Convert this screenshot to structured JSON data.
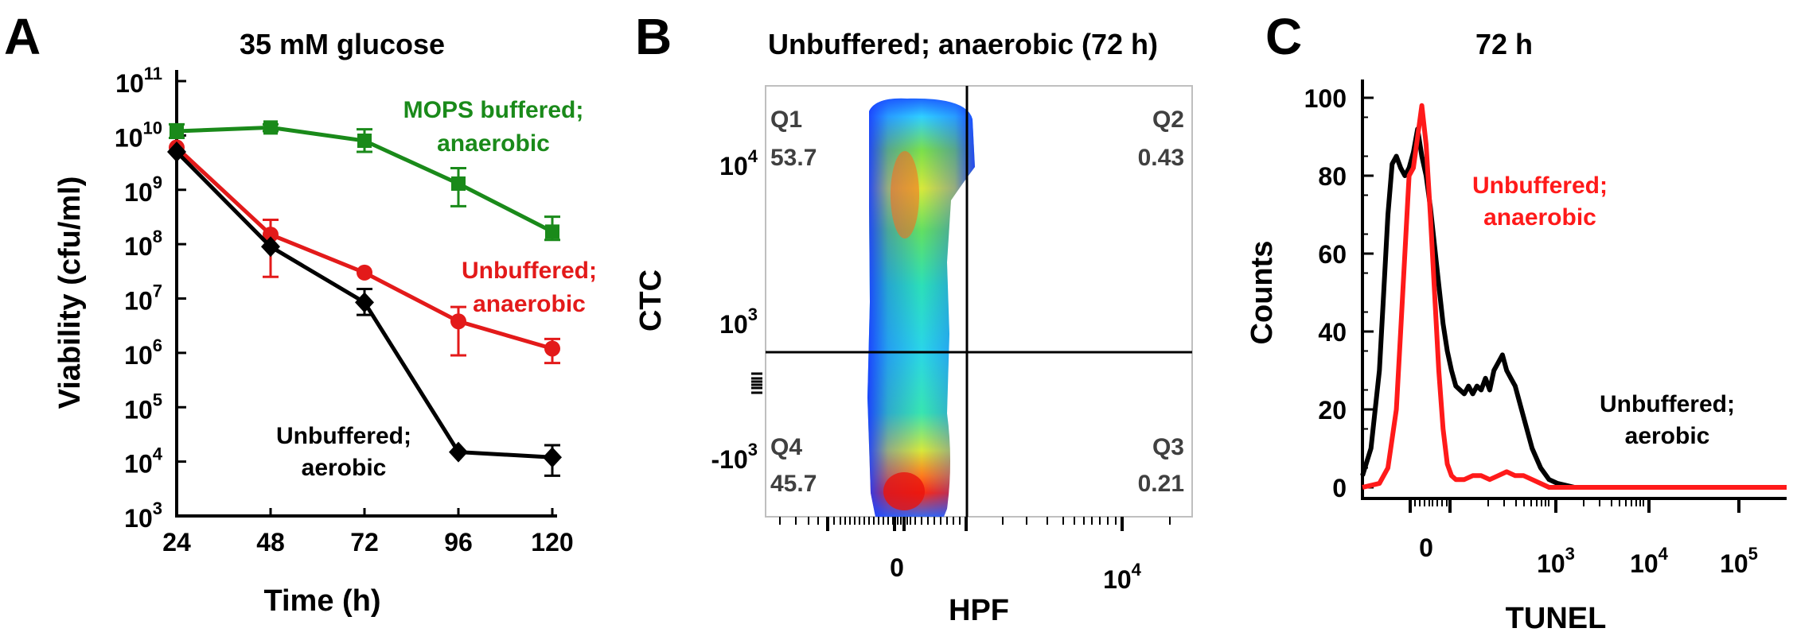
{
  "chart_data": [
    {
      "panel": "A",
      "type": "line",
      "title": "35 mM glucose",
      "xlabel": "Time (h)",
      "ylabel": "Viability (cfu/ml)",
      "yscale": "log",
      "xlim": [
        24,
        120
      ],
      "ylim": [
        1000,
        100000000000
      ],
      "x_ticks": [
        "24",
        "48",
        "72",
        "96",
        "120"
      ],
      "y_ticks": [
        {
          "base": "10",
          "exp": "3"
        },
        {
          "base": "10",
          "exp": "4"
        },
        {
          "base": "10",
          "exp": "5"
        },
        {
          "base": "10",
          "exp": "6"
        },
        {
          "base": "10",
          "exp": "7"
        },
        {
          "base": "10",
          "exp": "8"
        },
        {
          "base": "10",
          "exp": "9"
        },
        {
          "base": "10",
          "exp": "10"
        },
        {
          "base": "10",
          "exp": "11"
        }
      ],
      "series": [
        {
          "label_lines": [
            "MOPS buffered;",
            "anaerobic"
          ],
          "color": "#1a8a1a",
          "marker": "square",
          "x": [
            24,
            48,
            72,
            96,
            120
          ],
          "y": [
            12000000000,
            14000000000,
            8000000000,
            1300000000,
            170000000
          ],
          "err_hi": [
            16000000000,
            16000000000,
            13000000000,
            2500000000,
            320000000
          ],
          "err_lo": [
            9000000000,
            12000000000,
            5000000000,
            500000000,
            120000000
          ]
        },
        {
          "label_lines": [
            "Unbuffered;",
            "anaerobic"
          ],
          "color": "#e31a1a",
          "marker": "circle",
          "x": [
            24,
            48,
            72,
            96,
            120
          ],
          "y": [
            6000000000,
            150000000,
            30000000,
            3800000,
            1200000
          ],
          "err_hi": [
            7000000000,
            280000000,
            33000000,
            7000000,
            1800000
          ],
          "err_lo": [
            5000000000,
            25000000,
            27000000,
            900000,
            650000
          ],
          "err_caps": [
            false,
            true,
            false,
            true,
            true
          ]
        },
        {
          "label_lines": [
            "Unbuffered;",
            "aerobic"
          ],
          "color": "#000000",
          "marker": "diamond",
          "x": [
            24,
            48,
            72,
            96,
            120
          ],
          "y": [
            5000000000,
            90000000,
            8500000,
            15000,
            12000
          ],
          "err_hi": [
            6500000000,
            110000000,
            15000000,
            16000,
            20000
          ],
          "err_lo": [
            4000000000,
            75000000,
            5000000,
            14000,
            5500
          ],
          "err_caps": [
            false,
            false,
            true,
            false,
            true
          ]
        }
      ]
    },
    {
      "panel": "B",
      "type": "heatmap",
      "title": "Unbuffered; anaerobic (72 h)",
      "xlabel": "HPF",
      "ylabel": "CTC",
      "x_ticks": [
        {
          "base": "0",
          "exp": ""
        },
        {
          "base": "10",
          "exp": "4"
        }
      ],
      "y_ticks": [
        {
          "base": "10",
          "exp": "4"
        },
        {
          "base": "10",
          "exp": "3"
        },
        {
          "base": "-10",
          "exp": "3"
        }
      ],
      "quadrants": [
        {
          "name": "Q1",
          "value": "53.7"
        },
        {
          "name": "Q2",
          "value": "0.43"
        },
        {
          "name": "Q3",
          "value": "0.21"
        },
        {
          "name": "Q4",
          "value": "45.7"
        }
      ]
    },
    {
      "panel": "C",
      "type": "line",
      "title": "72 h",
      "xlabel": "TUNEL",
      "ylabel": "Counts",
      "ylim": [
        0,
        100
      ],
      "y_ticks": [
        "0",
        "20",
        "40",
        "60",
        "80",
        "100"
      ],
      "x_ticks": [
        {
          "base": "0",
          "exp": ""
        },
        {
          "base": "10",
          "exp": "3"
        },
        {
          "base": "10",
          "exp": "4"
        },
        {
          "base": "10",
          "exp": "5"
        }
      ],
      "series": [
        {
          "label_lines": [
            "Unbuffered;",
            "aerobic"
          ],
          "color": "#000000",
          "x": [
            0,
            2,
            4,
            5,
            6,
            7,
            8,
            9,
            10,
            11,
            12,
            13,
            14,
            15,
            16,
            17,
            18,
            19,
            20,
            21,
            22,
            23,
            24,
            25,
            26,
            27,
            28,
            29,
            30,
            31,
            32,
            33,
            34,
            35,
            36,
            37,
            38,
            40,
            42,
            44,
            46,
            50,
            60,
            100
          ],
          "y": [
            3,
            10,
            30,
            50,
            70,
            83,
            85,
            82,
            80,
            82,
            86,
            92,
            85,
            80,
            72,
            62,
            52,
            42,
            35,
            30,
            26,
            25,
            24,
            26,
            24,
            26,
            25,
            28,
            25,
            30,
            32,
            34,
            30,
            28,
            26,
            22,
            18,
            10,
            5,
            2,
            1,
            0,
            0,
            0
          ]
        },
        {
          "label_lines": [
            "Unbuffered;",
            "anaerobic"
          ],
          "color": "#ff1a1a",
          "x": [
            0,
            4,
            6,
            8,
            9,
            10,
            11,
            12,
            13,
            14,
            15,
            16,
            17,
            18,
            19,
            20,
            21,
            22,
            23,
            24,
            26,
            28,
            30,
            32,
            34,
            36,
            38,
            40,
            42,
            44,
            48,
            60,
            100
          ],
          "y": [
            0,
            1,
            5,
            20,
            40,
            60,
            80,
            82,
            90,
            98,
            88,
            70,
            50,
            30,
            15,
            6,
            3,
            2,
            2,
            2,
            3,
            3,
            2,
            3,
            4,
            3,
            3,
            2,
            1,
            0,
            0,
            0,
            0
          ]
        }
      ]
    }
  ]
}
